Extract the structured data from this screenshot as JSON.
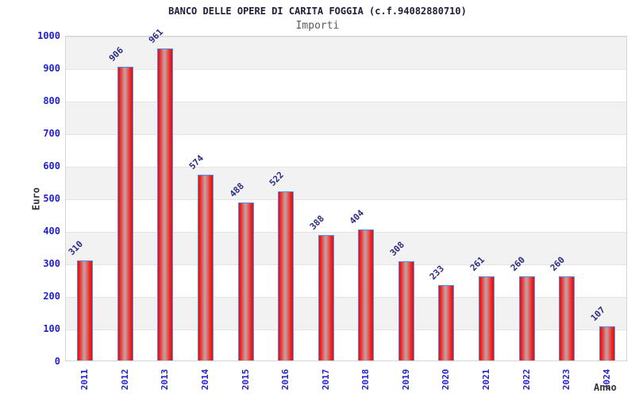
{
  "chart_data": {
    "type": "bar",
    "title": "BANCO DELLE OPERE DI CARITA FOGGIA (c.f.94082880710)",
    "subtitle": "Importi",
    "xlabel": "Anno",
    "ylabel": "Euro",
    "categories": [
      "2011",
      "2012",
      "2013",
      "2014",
      "2015",
      "2016",
      "2017",
      "2018",
      "2019",
      "2020",
      "2021",
      "2022",
      "2023",
      "2024"
    ],
    "values": [
      310,
      906,
      961,
      574,
      488,
      522,
      388,
      404,
      308,
      233,
      261,
      260,
      260,
      107
    ],
    "ylim": [
      0,
      1000
    ],
    "ytick_step": 100,
    "yticks": [
      0,
      100,
      200,
      300,
      400,
      500,
      600,
      700,
      800,
      900,
      1000
    ],
    "grid": "horizontal-bands",
    "legend": "none",
    "value_labels_rotation_deg": -45,
    "x_labels_rotation_deg": -90
  },
  "colors": {
    "title": "#20203a",
    "subtitle": "#5a5a5a",
    "tick": "#2222cc",
    "value_label": "#2b2b85",
    "axis_title": "#333333",
    "band_gray": "#f2f2f2",
    "grid_line": "#e3e3e3",
    "plot_border": "#d6d6d6",
    "bar_border": "#4d94e8",
    "bar_red_dark": "#dd1010",
    "bar_red_bright": "#f22222",
    "bar_highlight": "#c79a9a"
  }
}
